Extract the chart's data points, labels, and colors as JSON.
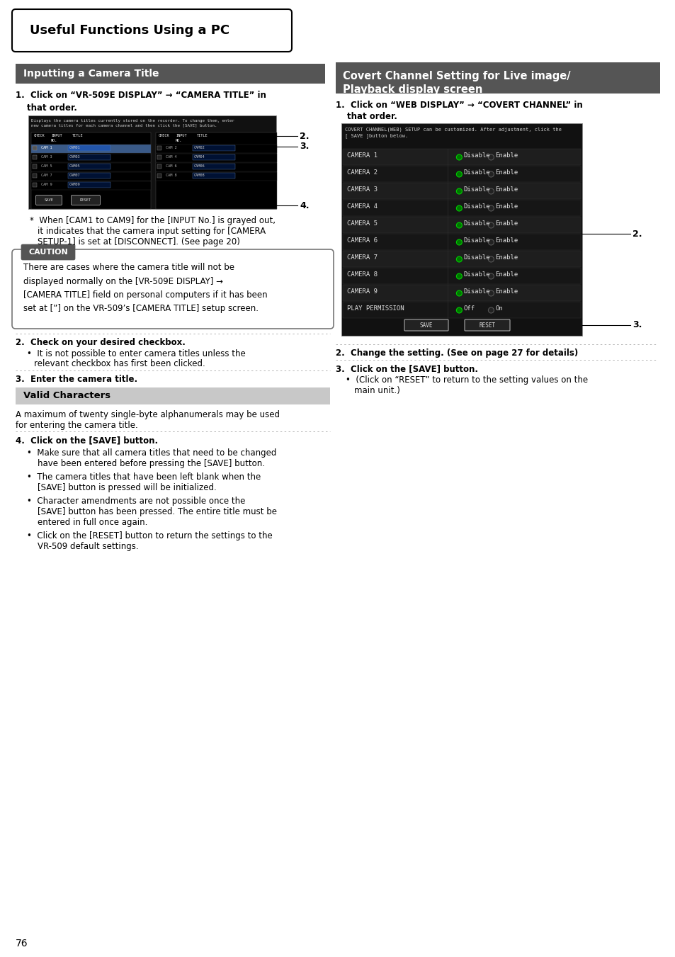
{
  "page_bg": "#ffffff",
  "page_num": "76",
  "main_title": "Useful Functions Using a PC",
  "left_section_title": "Inputting a Camera Title",
  "right_section_title": "Covert Channel Setting for Live image/\nPlayback display screen",
  "section_title_bg": "#555555",
  "section_title_color": "#ffffff",
  "body_text_color": "#000000",
  "caution_bg": "#ffffff",
  "caution_border": "#777777",
  "caution_label_bg": "#555555",
  "caution_label_color": "#ffffff",
  "valid_chars_bg": "#c8c8c8",
  "dotted_line_color": "#aaaaaa",
  "screen_bg": "#111111",
  "screen_text": "#dddddd",
  "screen_green": "#00bb00",
  "screen_red": "#cc2222",
  "screen_btn_bg": "#333333",
  "screen_btn_border": "#aaaaaa",
  "cam_names": [
    "CAMERA 1",
    "CAMERA 2",
    "CAMERA 3",
    "CAMERA 4",
    "CAMERA 5",
    "CAMERA 6",
    "CAMERA 7",
    "CAMERA 8",
    "CAMERA 9",
    "PLAY PERMISSION"
  ]
}
